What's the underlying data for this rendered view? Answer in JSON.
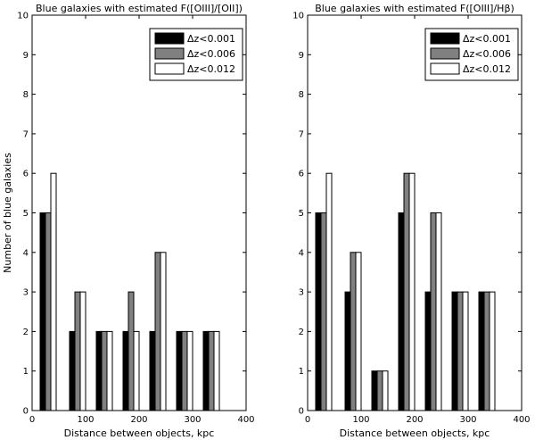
{
  "chart_data": [
    {
      "type": "bar",
      "title": "Blue galaxies with estimated F([OIII]/[OII])",
      "xlabel": "Distance between objects, kpc",
      "ylabel": "Number of blue galaxies",
      "xlim": [
        0,
        400
      ],
      "ylim": [
        0,
        10
      ],
      "xticks": [
        "0",
        "100",
        "200",
        "300",
        "400"
      ],
      "yticks": [
        "0",
        "1",
        "2",
        "3",
        "4",
        "5",
        "6",
        "7",
        "8",
        "9",
        "10"
      ],
      "legend_position": "top-right",
      "categories": [
        30,
        85,
        135,
        185,
        235,
        285,
        335
      ],
      "series": [
        {
          "name": "Δz<0.001",
          "color": "#000000",
          "values": [
            5,
            2,
            2,
            2,
            2,
            2,
            2
          ]
        },
        {
          "name": "Δz<0.006",
          "color": "#808080",
          "values": [
            5,
            3,
            2,
            3,
            4,
            2,
            2
          ]
        },
        {
          "name": "Δz<0.012",
          "color": "#ffffff",
          "values": [
            6,
            3,
            2,
            2,
            4,
            2,
            2
          ]
        }
      ]
    },
    {
      "type": "bar",
      "title": "Blue galaxies with estimated F([OIII]/Hβ)",
      "xlabel": "Distance between objects, kpc",
      "ylabel": "",
      "xlim": [
        0,
        400
      ],
      "ylim": [
        0,
        10
      ],
      "xticks": [
        "0",
        "100",
        "200",
        "300",
        "400"
      ],
      "yticks": [
        "0",
        "1",
        "2",
        "3",
        "4",
        "5",
        "6",
        "7",
        "8",
        "9",
        "10"
      ],
      "legend_position": "top-right",
      "categories": [
        30,
        85,
        135,
        185,
        235,
        285,
        335
      ],
      "series": [
        {
          "name": "Δz<0.001",
          "color": "#000000",
          "values": [
            5,
            3,
            1,
            5,
            3,
            3,
            3
          ]
        },
        {
          "name": "Δz<0.006",
          "color": "#808080",
          "values": [
            5,
            4,
            1,
            6,
            5,
            3,
            3
          ]
        },
        {
          "name": "Δz<0.012",
          "color": "#ffffff",
          "values": [
            6,
            4,
            1,
            6,
            5,
            3,
            3
          ]
        }
      ]
    }
  ]
}
